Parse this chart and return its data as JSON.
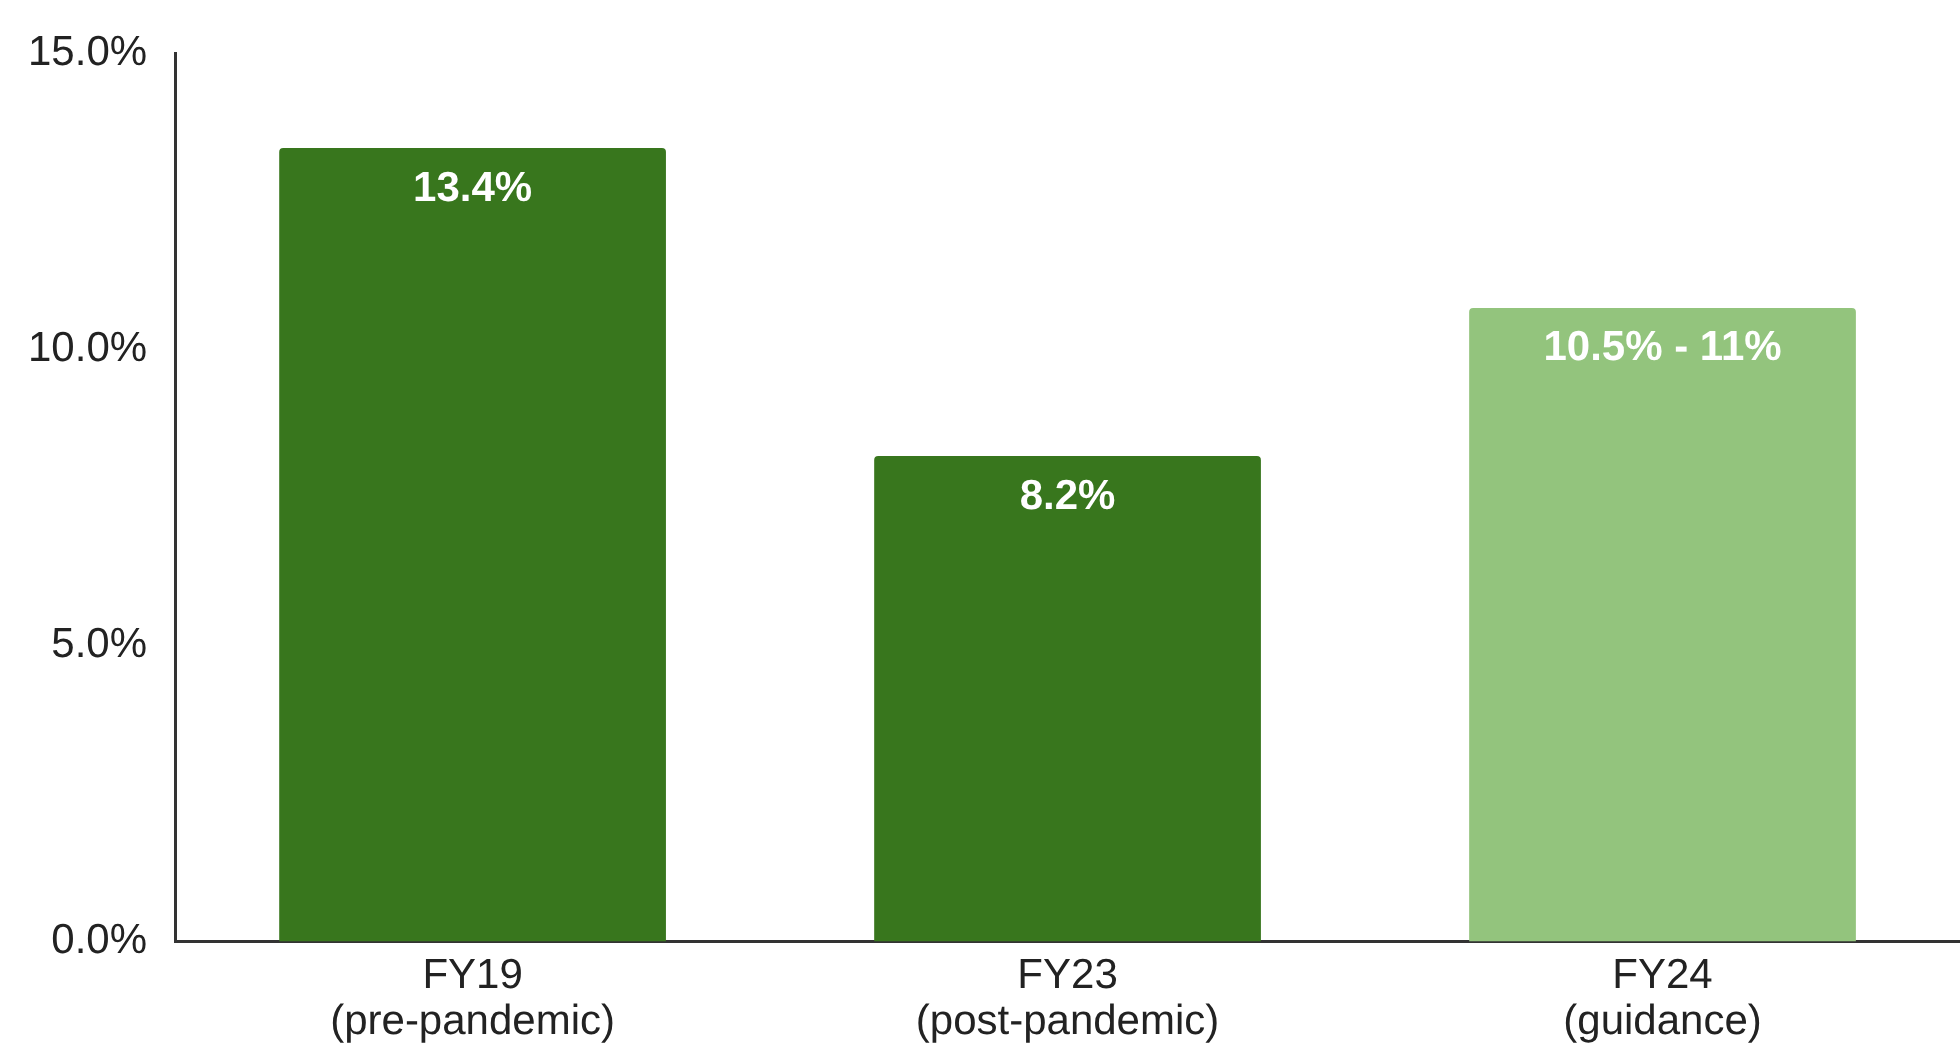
{
  "chart_data": {
    "type": "bar",
    "categories": [
      "FY19\n(pre-pandemic)",
      "FY23\n(post-pandemic)",
      "FY24\n(guidance)"
    ],
    "values": [
      13.4,
      8.2,
      10.7
    ],
    "colors": [
      "#38761d",
      "#38761d",
      "#93c47d"
    ],
    "value_labels": [
      "13.4%",
      "8.2%",
      null
    ],
    "annotations": [
      {
        "text": "10.5% - 11%",
        "x": "FY24\n(guidance)",
        "y": 10.7
      }
    ],
    "ylim": [
      0,
      15
    ],
    "yticks": [
      {
        "value": 0,
        "label": "0.0%"
      },
      {
        "value": 5,
        "label": "5.0%"
      },
      {
        "value": 10,
        "label": "10.0%"
      },
      {
        "value": 15,
        "label": "15.0%"
      }
    ],
    "grid": false,
    "legend": false
  }
}
